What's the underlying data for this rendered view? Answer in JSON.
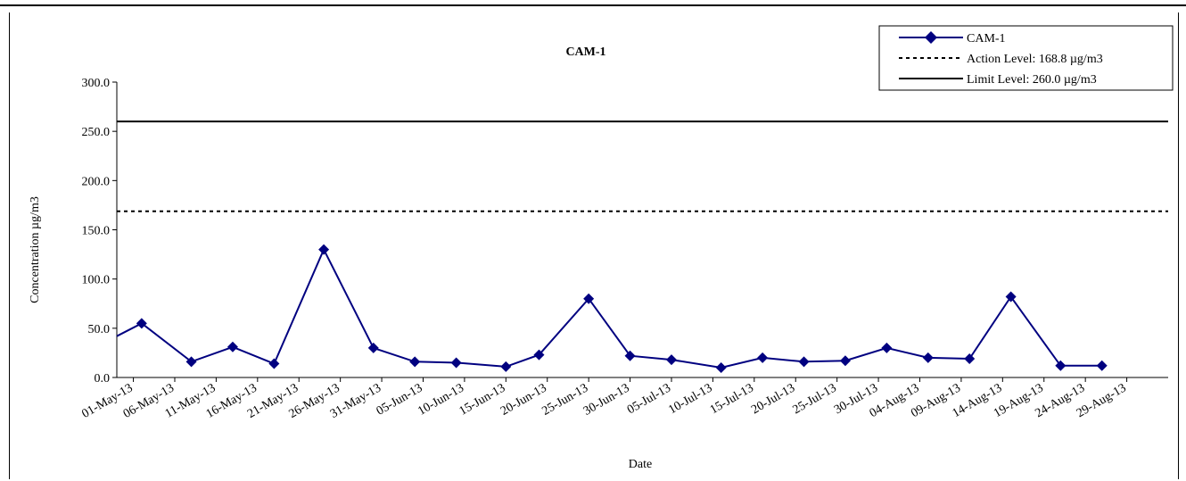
{
  "chart_data": {
    "type": "line",
    "title": "CAM-1",
    "xlabel": "Date",
    "ylabel": "Concentration µg/m3",
    "ylim": [
      0,
      300
    ],
    "yticks": [
      "0.0",
      "50.0",
      "100.0",
      "150.0",
      "200.0",
      "250.0",
      "300.0"
    ],
    "xticks": [
      "01-May-13",
      "06-May-13",
      "11-May-13",
      "16-May-13",
      "21-May-13",
      "26-May-13",
      "31-May-13",
      "05-Jun-13",
      "10-Jun-13",
      "15-Jun-13",
      "20-Jun-13",
      "25-Jun-13",
      "30-Jun-13",
      "05-Jul-13",
      "10-Jul-13",
      "15-Jul-13",
      "20-Jul-13",
      "25-Jul-13",
      "30-Jul-13",
      "04-Aug-13",
      "09-Aug-13",
      "14-Aug-13",
      "19-Aug-13",
      "24-Aug-13",
      "29-Aug-13"
    ],
    "series": [
      {
        "name": "CAM-1",
        "color": "#000080",
        "marker": "diamond",
        "x": [
          "2013-05-02",
          "2013-05-08",
          "2013-05-13",
          "2013-05-18",
          "2013-05-24",
          "2013-05-30",
          "2013-06-04",
          "2013-06-09",
          "2013-06-15",
          "2013-06-19",
          "2013-06-25",
          "2013-06-30",
          "2013-07-05",
          "2013-07-11",
          "2013-07-16",
          "2013-07-21",
          "2013-07-26",
          "2013-07-31",
          "2013-08-05",
          "2013-08-10",
          "2013-08-15",
          "2013-08-21",
          "2013-08-26"
        ],
        "values": [
          55.0,
          16.0,
          31.0,
          14.0,
          130.0,
          30.0,
          16.0,
          15.0,
          11.0,
          23.0,
          80.0,
          22.0,
          18.0,
          10.0,
          20.0,
          16.0,
          17.0,
          30.0,
          20.0,
          19.0,
          82.0,
          12.0,
          12.0
        ]
      },
      {
        "name": "Action Level: 168.8 µg/m3",
        "style": "dotted",
        "color": "#000000",
        "values": [
          168.8
        ]
      },
      {
        "name": "Limit Level: 260.0 µg/m3",
        "style": "solid",
        "color": "#000000",
        "values": [
          260.0
        ]
      }
    ],
    "legend_position": "top-right"
  }
}
